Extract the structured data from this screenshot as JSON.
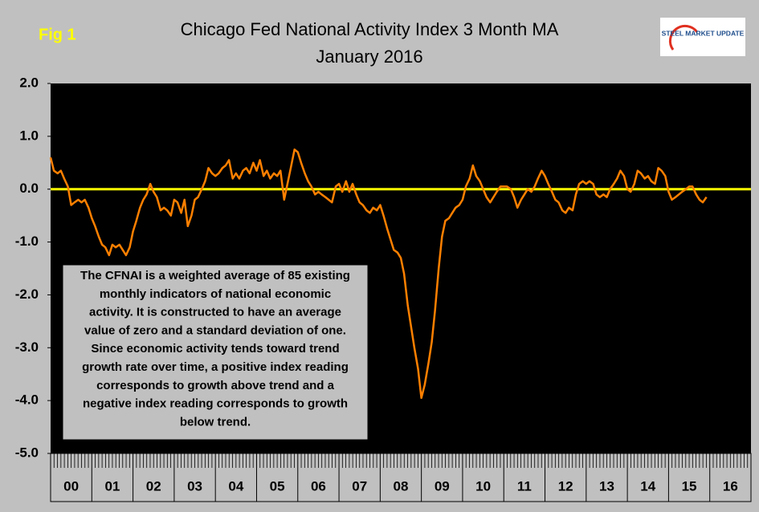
{
  "fig_label": "Fig 1",
  "logo": "STEEL MARKET UPDATE",
  "chart_data": {
    "type": "line",
    "title": "Chicago Fed National Activity Index 3 Month MA",
    "subtitle": "January 2016",
    "annotation": [
      "The CFNAI is a weighted average of 85 existing",
      "monthly indicators of national economic",
      "activity. It is constructed to have an average",
      "value of zero and a standard deviation of one.",
      "Since economic activity tends toward trend",
      "growth rate over time, a positive index reading",
      "corresponds to growth above trend and a",
      "negative index reading corresponds to growth",
      "below trend."
    ],
    "ylim": [
      -5,
      2
    ],
    "yticks": [
      {
        "value": -5,
        "label": "-5.0"
      },
      {
        "value": -4,
        "label": "-4.0"
      },
      {
        "value": -3,
        "label": "-3.0"
      },
      {
        "value": -2,
        "label": "-2.0"
      },
      {
        "value": -1,
        "label": "-1.0"
      },
      {
        "value": 0,
        "label": "0.0"
      },
      {
        "value": 1,
        "label": "1.0"
      },
      {
        "value": 2,
        "label": "2.0"
      }
    ],
    "xlim": [
      2000,
      2017
    ],
    "xticks": [
      {
        "value": 2000,
        "label": "00"
      },
      {
        "value": 2001,
        "label": "01"
      },
      {
        "value": 2002,
        "label": "02"
      },
      {
        "value": 2003,
        "label": "03"
      },
      {
        "value": 2004,
        "label": "04"
      },
      {
        "value": 2005,
        "label": "05"
      },
      {
        "value": 2006,
        "label": "06"
      },
      {
        "value": 2007,
        "label": "07"
      },
      {
        "value": 2008,
        "label": "08"
      },
      {
        "value": 2009,
        "label": "09"
      },
      {
        "value": 2010,
        "label": "10"
      },
      {
        "value": 2011,
        "label": "11"
      },
      {
        "value": 2012,
        "label": "12"
      },
      {
        "value": 2013,
        "label": "13"
      },
      {
        "value": 2014,
        "label": "14"
      },
      {
        "value": 2015,
        "label": "15"
      },
      {
        "value": 2016,
        "label": "16"
      }
    ],
    "reference_line": {
      "value": 0,
      "color": "#ffff00"
    },
    "series": [
      {
        "color": "#ff8000",
        "x": [
          2000.0,
          2000.08,
          2000.17,
          2000.25,
          2000.33,
          2000.42,
          2000.5,
          2000.58,
          2000.67,
          2000.75,
          2000.83,
          2000.92,
          2001.0,
          2001.08,
          2001.17,
          2001.25,
          2001.33,
          2001.42,
          2001.5,
          2001.58,
          2001.67,
          2001.75,
          2001.83,
          2001.92,
          2002.0,
          2002.08,
          2002.17,
          2002.25,
          2002.33,
          2002.42,
          2002.5,
          2002.58,
          2002.67,
          2002.75,
          2002.83,
          2002.92,
          2003.0,
          2003.08,
          2003.17,
          2003.25,
          2003.33,
          2003.42,
          2003.5,
          2003.58,
          2003.67,
          2003.75,
          2003.83,
          2003.92,
          2004.0,
          2004.08,
          2004.17,
          2004.25,
          2004.33,
          2004.42,
          2004.5,
          2004.58,
          2004.67,
          2004.75,
          2004.83,
          2004.92,
          2005.0,
          2005.08,
          2005.17,
          2005.25,
          2005.33,
          2005.42,
          2005.5,
          2005.58,
          2005.67,
          2005.75,
          2005.83,
          2005.92,
          2006.0,
          2006.08,
          2006.17,
          2006.25,
          2006.33,
          2006.42,
          2006.5,
          2006.58,
          2006.67,
          2006.75,
          2006.83,
          2006.92,
          2007.0,
          2007.08,
          2007.17,
          2007.25,
          2007.33,
          2007.42,
          2007.5,
          2007.58,
          2007.67,
          2007.75,
          2007.83,
          2007.92,
          2008.0,
          2008.08,
          2008.17,
          2008.25,
          2008.33,
          2008.42,
          2008.5,
          2008.58,
          2008.67,
          2008.75,
          2008.83,
          2008.92,
          2009.0,
          2009.08,
          2009.17,
          2009.25,
          2009.33,
          2009.42,
          2009.5,
          2009.58,
          2009.67,
          2009.75,
          2009.83,
          2009.92,
          2010.0,
          2010.08,
          2010.17,
          2010.25,
          2010.33,
          2010.42,
          2010.5,
          2010.58,
          2010.67,
          2010.75,
          2010.83,
          2010.92,
          2011.0,
          2011.08,
          2011.17,
          2011.25,
          2011.33,
          2011.42,
          2011.5,
          2011.58,
          2011.67,
          2011.75,
          2011.83,
          2011.92,
          2012.0,
          2012.08,
          2012.17,
          2012.25,
          2012.33,
          2012.42,
          2012.5,
          2012.58,
          2012.67,
          2012.75,
          2012.83,
          2012.92,
          2013.0,
          2013.08,
          2013.17,
          2013.25,
          2013.33,
          2013.42,
          2013.5,
          2013.58,
          2013.67,
          2013.75,
          2013.83,
          2013.92,
          2014.0,
          2014.08,
          2014.17,
          2014.25,
          2014.33,
          2014.42,
          2014.5,
          2014.58,
          2014.67,
          2014.75,
          2014.83,
          2014.92,
          2015.0,
          2015.08,
          2015.17,
          2015.25,
          2015.33,
          2015.42,
          2015.5,
          2015.58,
          2015.67,
          2015.75,
          2015.83,
          2015.92
        ],
        "values": [
          0.6,
          0.35,
          0.3,
          0.35,
          0.2,
          0.05,
          -0.3,
          -0.25,
          -0.2,
          -0.25,
          -0.2,
          -0.35,
          -0.55,
          -0.7,
          -0.9,
          -1.05,
          -1.1,
          -1.25,
          -1.05,
          -1.1,
          -1.05,
          -1.15,
          -1.25,
          -1.1,
          -0.8,
          -0.6,
          -0.35,
          -0.2,
          -0.1,
          0.1,
          -0.05,
          -0.15,
          -0.4,
          -0.35,
          -0.4,
          -0.5,
          -0.2,
          -0.25,
          -0.45,
          -0.2,
          -0.7,
          -0.5,
          -0.2,
          -0.15,
          0.0,
          0.15,
          0.4,
          0.3,
          0.25,
          0.3,
          0.4,
          0.45,
          0.55,
          0.2,
          0.3,
          0.2,
          0.35,
          0.4,
          0.3,
          0.5,
          0.35,
          0.55,
          0.25,
          0.35,
          0.2,
          0.3,
          0.25,
          0.35,
          -0.2,
          0.1,
          0.4,
          0.75,
          0.7,
          0.5,
          0.3,
          0.15,
          0.05,
          -0.1,
          -0.05,
          -0.1,
          -0.15,
          -0.2,
          -0.25,
          0.05,
          0.1,
          -0.05,
          0.15,
          -0.05,
          0.1,
          -0.1,
          -0.25,
          -0.3,
          -0.4,
          -0.45,
          -0.35,
          -0.4,
          -0.3,
          -0.5,
          -0.75,
          -0.95,
          -1.15,
          -1.2,
          -1.3,
          -1.6,
          -2.2,
          -2.6,
          -3.0,
          -3.4,
          -3.95,
          -3.7,
          -3.3,
          -2.9,
          -2.3,
          -1.5,
          -0.9,
          -0.6,
          -0.55,
          -0.45,
          -0.35,
          -0.3,
          -0.2,
          0.05,
          0.2,
          0.45,
          0.25,
          0.15,
          0.0,
          -0.15,
          -0.25,
          -0.15,
          -0.05,
          0.05,
          0.05,
          0.05,
          0.0,
          -0.15,
          -0.35,
          -0.2,
          -0.1,
          0.0,
          -0.05,
          0.05,
          0.2,
          0.35,
          0.25,
          0.1,
          -0.05,
          -0.2,
          -0.25,
          -0.4,
          -0.45,
          -0.35,
          -0.4,
          -0.1,
          0.1,
          0.15,
          0.1,
          0.15,
          0.1,
          -0.1,
          -0.15,
          -0.1,
          -0.15,
          0.0,
          0.1,
          0.2,
          0.35,
          0.25,
          0.0,
          -0.05,
          0.1,
          0.35,
          0.3,
          0.2,
          0.25,
          0.15,
          0.1,
          0.4,
          0.35,
          0.25,
          -0.05,
          -0.2,
          -0.15,
          -0.1,
          -0.05,
          0.0,
          0.05,
          0.05,
          -0.1,
          -0.2,
          -0.25,
          -0.15
        ]
      }
    ]
  }
}
